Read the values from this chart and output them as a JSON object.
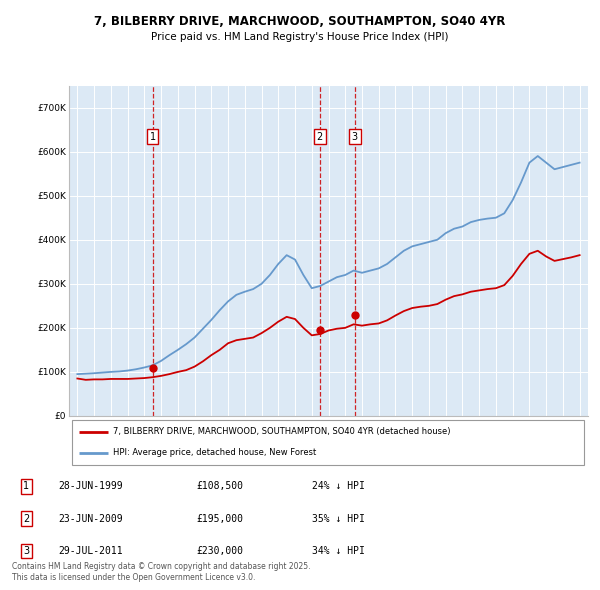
{
  "title": "7, BILBERRY DRIVE, MARCHWOOD, SOUTHAMPTON, SO40 4YR",
  "subtitle": "Price paid vs. HM Land Registry's House Price Index (HPI)",
  "background_color": "#dce9f5",
  "plot_bg_color": "#dce9f5",
  "ylim": [
    0,
    750000
  ],
  "yticks": [
    0,
    100000,
    200000,
    300000,
    400000,
    500000,
    600000,
    700000
  ],
  "ytick_labels": [
    "£0",
    "£100K",
    "£200K",
    "£300K",
    "£400K",
    "£500K",
    "£600K",
    "£700K"
  ],
  "sale_dates_num": [
    1999.49,
    2009.48,
    2011.57
  ],
  "sale_prices": [
    108500,
    195000,
    230000
  ],
  "sale_labels": [
    "1",
    "2",
    "3"
  ],
  "sale_color": "#cc0000",
  "hpi_color": "#6699cc",
  "legend_sale_label": "7, BILBERRY DRIVE, MARCHWOOD, SOUTHAMPTON, SO40 4YR (detached house)",
  "legend_hpi_label": "HPI: Average price, detached house, New Forest",
  "table_data": [
    {
      "num": "1",
      "date": "28-JUN-1999",
      "price": "£108,500",
      "hpi": "24% ↓ HPI"
    },
    {
      "num": "2",
      "date": "23-JUN-2009",
      "price": "£195,000",
      "hpi": "35% ↓ HPI"
    },
    {
      "num": "3",
      "date": "29-JUL-2011",
      "price": "£230,000",
      "hpi": "34% ↓ HPI"
    }
  ],
  "footer": "Contains HM Land Registry data © Crown copyright and database right 2025.\nThis data is licensed under the Open Government Licence v3.0.",
  "hpi_years": [
    1995,
    1995.5,
    1996,
    1996.5,
    1997,
    1997.5,
    1998,
    1998.5,
    1999,
    1999.5,
    2000,
    2000.5,
    2001,
    2001.5,
    2002,
    2002.5,
    2003,
    2003.5,
    2004,
    2004.5,
    2005,
    2005.5,
    2006,
    2006.5,
    2007,
    2007.5,
    2008,
    2008.5,
    2009,
    2009.5,
    2010,
    2010.5,
    2011,
    2011.5,
    2012,
    2012.5,
    2013,
    2013.5,
    2014,
    2014.5,
    2015,
    2015.5,
    2016,
    2016.5,
    2017,
    2017.5,
    2018,
    2018.5,
    2019,
    2019.5,
    2020,
    2020.5,
    2021,
    2021.5,
    2022,
    2022.5,
    2023,
    2023.5,
    2024,
    2024.5,
    2025
  ],
  "hpi_values": [
    95000,
    96000,
    97000,
    98500,
    100000,
    101000,
    103000,
    106000,
    110000,
    115000,
    125000,
    138000,
    150000,
    163000,
    178000,
    198000,
    218000,
    240000,
    260000,
    275000,
    282000,
    288000,
    300000,
    320000,
    345000,
    365000,
    355000,
    320000,
    290000,
    295000,
    305000,
    315000,
    320000,
    330000,
    325000,
    330000,
    335000,
    345000,
    360000,
    375000,
    385000,
    390000,
    395000,
    400000,
    415000,
    425000,
    430000,
    440000,
    445000,
    448000,
    450000,
    460000,
    490000,
    530000,
    575000,
    590000,
    575000,
    560000,
    565000,
    570000,
    575000
  ],
  "sale_hpi_values": [
    85000,
    82000,
    83000,
    83000,
    84000,
    84000,
    84000,
    85000,
    86000,
    88000,
    91000,
    95000,
    100000,
    104000,
    112000,
    124000,
    138000,
    150000,
    165000,
    172000,
    175000,
    178000,
    188000,
    200000,
    214000,
    225000,
    220000,
    200000,
    183000,
    186000,
    194000,
    198000,
    200000,
    208000,
    205000,
    208000,
    210000,
    217000,
    228000,
    238000,
    245000,
    248000,
    250000,
    254000,
    264000,
    272000,
    276000,
    282000,
    285000,
    288000,
    290000,
    297000,
    318000,
    345000,
    368000,
    375000,
    362000,
    352000,
    356000,
    360000,
    365000
  ]
}
